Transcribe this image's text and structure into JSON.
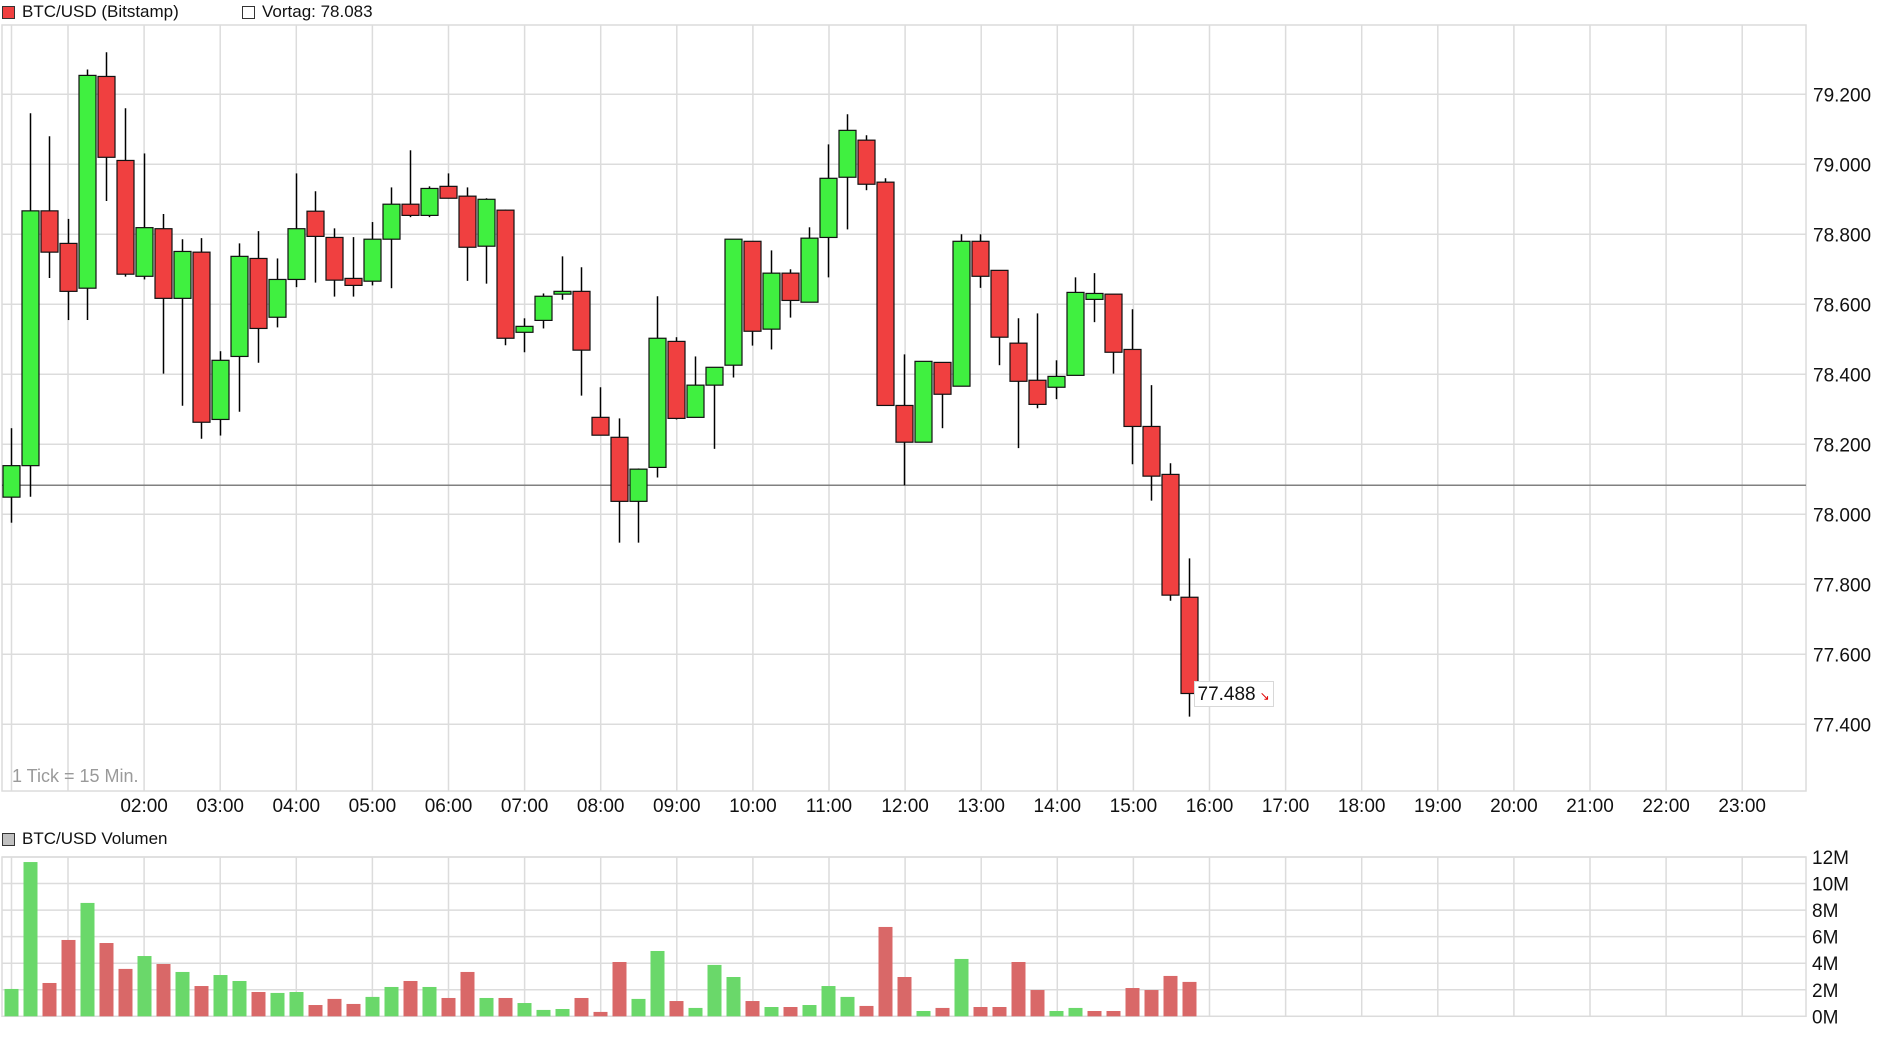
{
  "header": {
    "instrument_label": "BTC/USD (Bitstamp)",
    "instrument_color": "#f04040",
    "prev_close_label": "Vortag: 78.083"
  },
  "volume_header": {
    "label": "BTC/USD Volumen",
    "swatch_color": "#c0c0c0"
  },
  "tick_note": "1 Tick = 15 Min.",
  "last_price": {
    "value": "77.488",
    "direction": "down",
    "arrow_icon": "↘",
    "arrow_color": "#e00000"
  },
  "colors": {
    "up": "#40f040",
    "down": "#f04040",
    "volume_up": "#6ad86a",
    "volume_down": "#d96868",
    "grid": "#dcdcdc",
    "reference_line": "#808080",
    "wick": "#000000"
  },
  "chart_data": [
    {
      "type": "candlestick",
      "title": "BTC/USD (Bitstamp)",
      "interval": "15 min",
      "xlabel": "",
      "ylabel": "",
      "ylim": [
        77.3,
        79.39
      ],
      "y_ticks": [
        "77.400",
        "77.600",
        "77.800",
        "78.000",
        "78.200",
        "78.400",
        "78.600",
        "78.800",
        "79.000",
        "79.200"
      ],
      "y_tick_values": [
        77.4,
        77.6,
        77.8,
        78.0,
        78.2,
        78.4,
        78.6,
        78.8,
        79.0,
        79.2
      ],
      "x_ticks": [
        "02:00",
        "03:00",
        "04:00",
        "05:00",
        "06:00",
        "07:00",
        "08:00",
        "09:00",
        "10:00",
        "11:00",
        "12:00",
        "13:00",
        "14:00",
        "15:00",
        "16:00",
        "17:00",
        "18:00",
        "19:00",
        "20:00",
        "21:00",
        "22:00",
        "23:00"
      ],
      "grid": true,
      "reference_line": {
        "label": "Vortag",
        "value": 78.083
      },
      "last_value": 77.488,
      "candles": [
        {
          "t": "00:15",
          "o": 78.049,
          "h": 78.246,
          "l": 77.976,
          "c": 78.139
        },
        {
          "t": "00:30",
          "o": 78.139,
          "h": 79.146,
          "l": 78.05,
          "c": 78.867
        },
        {
          "t": "00:45",
          "o": 78.867,
          "h": 79.08,
          "l": 78.675,
          "c": 78.749
        },
        {
          "t": "01:00",
          "o": 78.774,
          "h": 78.844,
          "l": 78.555,
          "c": 78.637
        },
        {
          "t": "01:15",
          "o": 78.646,
          "h": 79.271,
          "l": 78.555,
          "c": 79.254
        },
        {
          "t": "01:30",
          "o": 79.251,
          "h": 79.32,
          "l": 78.895,
          "c": 79.02
        },
        {
          "t": "01:45",
          "o": 79.011,
          "h": 79.16,
          "l": 78.679,
          "c": 78.686
        },
        {
          "t": "02:00",
          "o": 78.68,
          "h": 79.031,
          "l": 78.671,
          "c": 78.819
        },
        {
          "t": "02:15",
          "o": 78.816,
          "h": 78.858,
          "l": 78.402,
          "c": 78.617
        },
        {
          "t": "02:30",
          "o": 78.617,
          "h": 78.786,
          "l": 78.31,
          "c": 78.751
        },
        {
          "t": "02:45",
          "o": 78.749,
          "h": 78.789,
          "l": 78.216,
          "c": 78.263
        },
        {
          "t": "03:00",
          "o": 78.271,
          "h": 78.466,
          "l": 78.225,
          "c": 78.44
        },
        {
          "t": "03:15",
          "o": 78.451,
          "h": 78.774,
          "l": 78.293,
          "c": 78.737
        },
        {
          "t": "03:30",
          "o": 78.731,
          "h": 78.809,
          "l": 78.433,
          "c": 78.531
        },
        {
          "t": "03:45",
          "o": 78.563,
          "h": 78.731,
          "l": 78.534,
          "c": 78.671
        },
        {
          "t": "04:00",
          "o": 78.671,
          "h": 78.974,
          "l": 78.649,
          "c": 78.816
        },
        {
          "t": "04:15",
          "o": 78.866,
          "h": 78.923,
          "l": 78.662,
          "c": 78.794
        },
        {
          "t": "04:30",
          "o": 78.791,
          "h": 78.817,
          "l": 78.622,
          "c": 78.669
        },
        {
          "t": "04:45",
          "o": 78.674,
          "h": 78.792,
          "l": 78.622,
          "c": 78.654
        },
        {
          "t": "05:00",
          "o": 78.666,
          "h": 78.835,
          "l": 78.654,
          "c": 78.786
        },
        {
          "t": "05:15",
          "o": 78.786,
          "h": 78.934,
          "l": 78.646,
          "c": 78.886
        },
        {
          "t": "05:30",
          "o": 78.886,
          "h": 79.04,
          "l": 78.849,
          "c": 78.854
        },
        {
          "t": "05:45",
          "o": 78.854,
          "h": 78.937,
          "l": 78.849,
          "c": 78.931
        },
        {
          "t": "06:00",
          "o": 78.937,
          "h": 78.974,
          "l": 78.903,
          "c": 78.903
        },
        {
          "t": "06:15",
          "o": 78.909,
          "h": 78.934,
          "l": 78.667,
          "c": 78.763
        },
        {
          "t": "06:30",
          "o": 78.766,
          "h": 78.903,
          "l": 78.659,
          "c": 78.9
        },
        {
          "t": "06:45",
          "o": 78.869,
          "h": 78.871,
          "l": 78.483,
          "c": 78.503
        },
        {
          "t": "07:00",
          "o": 78.52,
          "h": 78.56,
          "l": 78.463,
          "c": 78.537
        },
        {
          "t": "07:15",
          "o": 78.554,
          "h": 78.631,
          "l": 78.531,
          "c": 78.623
        },
        {
          "t": "07:30",
          "o": 78.629,
          "h": 78.737,
          "l": 78.613,
          "c": 78.637
        },
        {
          "t": "07:45",
          "o": 78.637,
          "h": 78.706,
          "l": 78.339,
          "c": 78.469
        },
        {
          "t": "08:00",
          "o": 78.277,
          "h": 78.363,
          "l": 78.226,
          "c": 78.226
        },
        {
          "t": "08:15",
          "o": 78.22,
          "h": 78.274,
          "l": 77.919,
          "c": 78.037
        },
        {
          "t": "08:30",
          "o": 78.037,
          "h": 78.131,
          "l": 77.919,
          "c": 78.129
        },
        {
          "t": "08:45",
          "o": 78.134,
          "h": 78.623,
          "l": 78.105,
          "c": 78.503
        },
        {
          "t": "09:00",
          "o": 78.494,
          "h": 78.506,
          "l": 78.271,
          "c": 78.274
        },
        {
          "t": "09:15",
          "o": 78.277,
          "h": 78.451,
          "l": 78.277,
          "c": 78.369
        },
        {
          "t": "09:30",
          "o": 78.369,
          "h": 78.42,
          "l": 78.187,
          "c": 78.42
        },
        {
          "t": "09:45",
          "o": 78.426,
          "h": 78.786,
          "l": 78.391,
          "c": 78.786
        },
        {
          "t": "10:00",
          "o": 78.78,
          "h": 78.78,
          "l": 78.482,
          "c": 78.523
        },
        {
          "t": "10:15",
          "o": 78.529,
          "h": 78.754,
          "l": 78.471,
          "c": 78.689
        },
        {
          "t": "10:30",
          "o": 78.689,
          "h": 78.7,
          "l": 78.562,
          "c": 78.611
        },
        {
          "t": "10:45",
          "o": 78.606,
          "h": 78.82,
          "l": 78.606,
          "c": 78.789
        },
        {
          "t": "11:00",
          "o": 78.791,
          "h": 79.057,
          "l": 78.677,
          "c": 78.96
        },
        {
          "t": "11:15",
          "o": 78.963,
          "h": 79.143,
          "l": 78.814,
          "c": 79.097
        },
        {
          "t": "11:30",
          "o": 79.069,
          "h": 79.083,
          "l": 78.926,
          "c": 78.943
        },
        {
          "t": "11:45",
          "o": 78.949,
          "h": 78.96,
          "l": 78.311,
          "c": 78.311
        },
        {
          "t": "12:00",
          "o": 78.311,
          "h": 78.457,
          "l": 78.083,
          "c": 78.206
        },
        {
          "t": "12:15",
          "o": 78.206,
          "h": 78.437,
          "l": 78.206,
          "c": 78.437
        },
        {
          "t": "12:30",
          "o": 78.434,
          "h": 78.434,
          "l": 78.246,
          "c": 78.343
        },
        {
          "t": "12:45",
          "o": 78.366,
          "h": 78.8,
          "l": 78.366,
          "c": 78.78
        },
        {
          "t": "13:00",
          "o": 78.78,
          "h": 78.8,
          "l": 78.647,
          "c": 78.68
        },
        {
          "t": "13:15",
          "o": 78.697,
          "h": 78.697,
          "l": 78.426,
          "c": 78.506
        },
        {
          "t": "13:30",
          "o": 78.489,
          "h": 78.56,
          "l": 78.189,
          "c": 78.38
        },
        {
          "t": "13:45",
          "o": 78.383,
          "h": 78.574,
          "l": 78.303,
          "c": 78.314
        },
        {
          "t": "14:00",
          "o": 78.363,
          "h": 78.44,
          "l": 78.329,
          "c": 78.394
        },
        {
          "t": "14:15",
          "o": 78.397,
          "h": 78.677,
          "l": 78.397,
          "c": 78.634
        },
        {
          "t": "14:30",
          "o": 78.614,
          "h": 78.689,
          "l": 78.549,
          "c": 78.631
        },
        {
          "t": "14:45",
          "o": 78.629,
          "h": 78.629,
          "l": 78.402,
          "c": 78.463
        },
        {
          "t": "15:00",
          "o": 78.471,
          "h": 78.586,
          "l": 78.143,
          "c": 78.251
        },
        {
          "t": "15:15",
          "o": 78.251,
          "h": 78.369,
          "l": 78.039,
          "c": 78.109
        },
        {
          "t": "15:30",
          "o": 78.114,
          "h": 78.146,
          "l": 77.753,
          "c": 77.769
        },
        {
          "t": "15:45",
          "o": 77.763,
          "h": 77.874,
          "l": 77.422,
          "c": 77.488
        }
      ]
    },
    {
      "type": "bar",
      "title": "BTC/USD Volumen",
      "xlabel": "",
      "ylabel": "",
      "ylim": [
        0,
        12
      ],
      "y_ticks": [
        "0M",
        "2M",
        "4M",
        "6M",
        "8M",
        "10M",
        "12M"
      ],
      "y_tick_values": [
        0,
        2,
        4,
        6,
        8,
        10,
        12
      ],
      "unit": "M",
      "grid": true,
      "values": [
        2.06,
        11.62,
        2.51,
        5.75,
        8.54,
        5.52,
        3.57,
        4.54,
        3.94,
        3.34,
        2.28,
        3.11,
        2.66,
        1.83,
        1.76,
        1.83,
        0.85,
        1.31,
        0.93,
        1.46,
        2.21,
        2.66,
        2.21,
        1.38,
        3.34,
        1.38,
        1.38,
        1.0,
        0.48,
        0.55,
        1.38,
        0.33,
        4.09,
        1.31,
        4.92,
        1.15,
        0.63,
        3.87,
        2.96,
        1.15,
        0.7,
        0.7,
        0.85,
        2.28,
        1.46,
        0.78,
        6.73,
        2.96,
        0.4,
        0.63,
        4.32,
        0.7,
        0.7,
        4.09,
        1.98,
        0.4,
        0.63,
        0.4,
        0.4,
        2.13,
        1.98,
        3.04,
        2.59
      ],
      "directions": [
        "up",
        "up",
        "down",
        "down",
        "up",
        "down",
        "down",
        "up",
        "down",
        "up",
        "down",
        "up",
        "up",
        "down",
        "up",
        "up",
        "down",
        "down",
        "down",
        "up",
        "up",
        "down",
        "up",
        "down",
        "down",
        "up",
        "down",
        "up",
        "up",
        "up",
        "down",
        "down",
        "down",
        "up",
        "up",
        "down",
        "up",
        "up",
        "up",
        "down",
        "up",
        "down",
        "up",
        "up",
        "up",
        "down",
        "down",
        "down",
        "up",
        "down",
        "up",
        "down",
        "down",
        "down",
        "down",
        "up",
        "up",
        "down",
        "down",
        "down",
        "down",
        "down",
        "down"
      ]
    }
  ]
}
